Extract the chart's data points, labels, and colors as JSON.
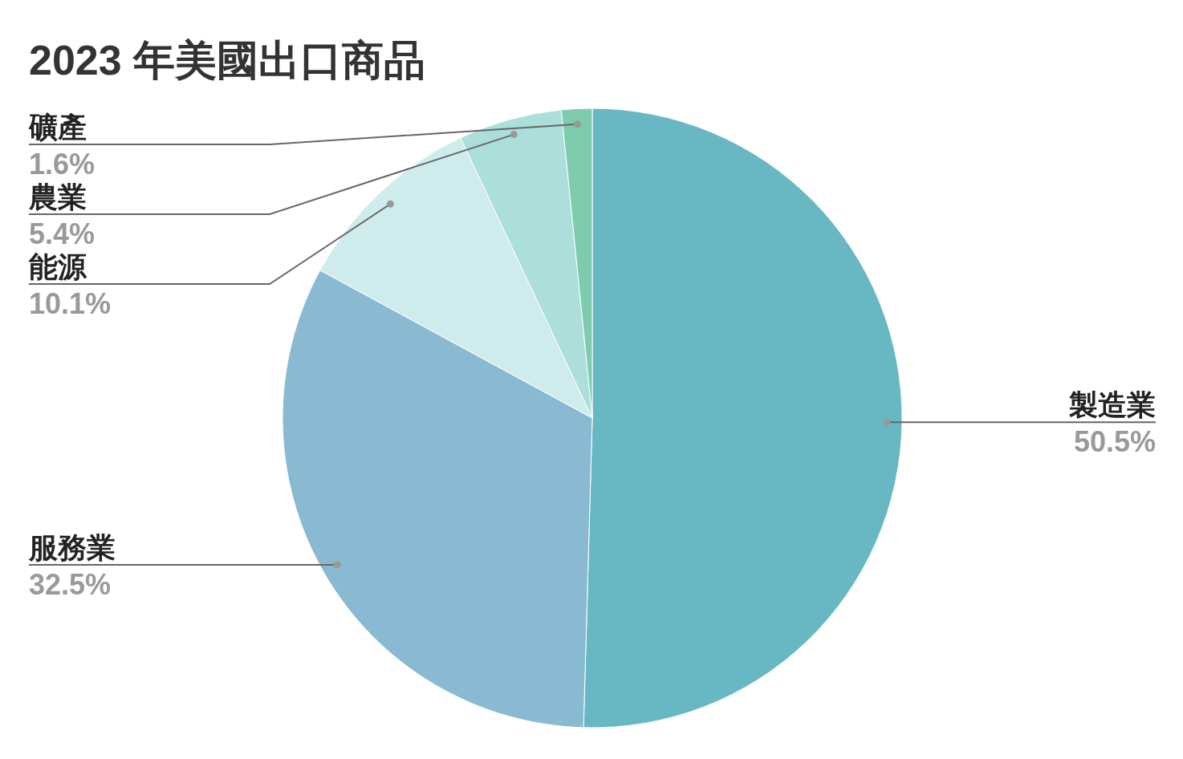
{
  "chart_data": {
    "type": "pie",
    "title": "2023 年美國出口商品",
    "categories": [
      "製造業",
      "服務業",
      "能源",
      "農業",
      "礦產"
    ],
    "values": [
      50.5,
      32.5,
      10.1,
      5.4,
      1.6
    ],
    "colors": [
      "#68b8c4",
      "#89bad2",
      "#ceeceb",
      "#acdeda",
      "#7fcbae"
    ],
    "value_labels": [
      "50.5%",
      "32.5%",
      "10.1%",
      "5.4%",
      "1.6%"
    ]
  }
}
